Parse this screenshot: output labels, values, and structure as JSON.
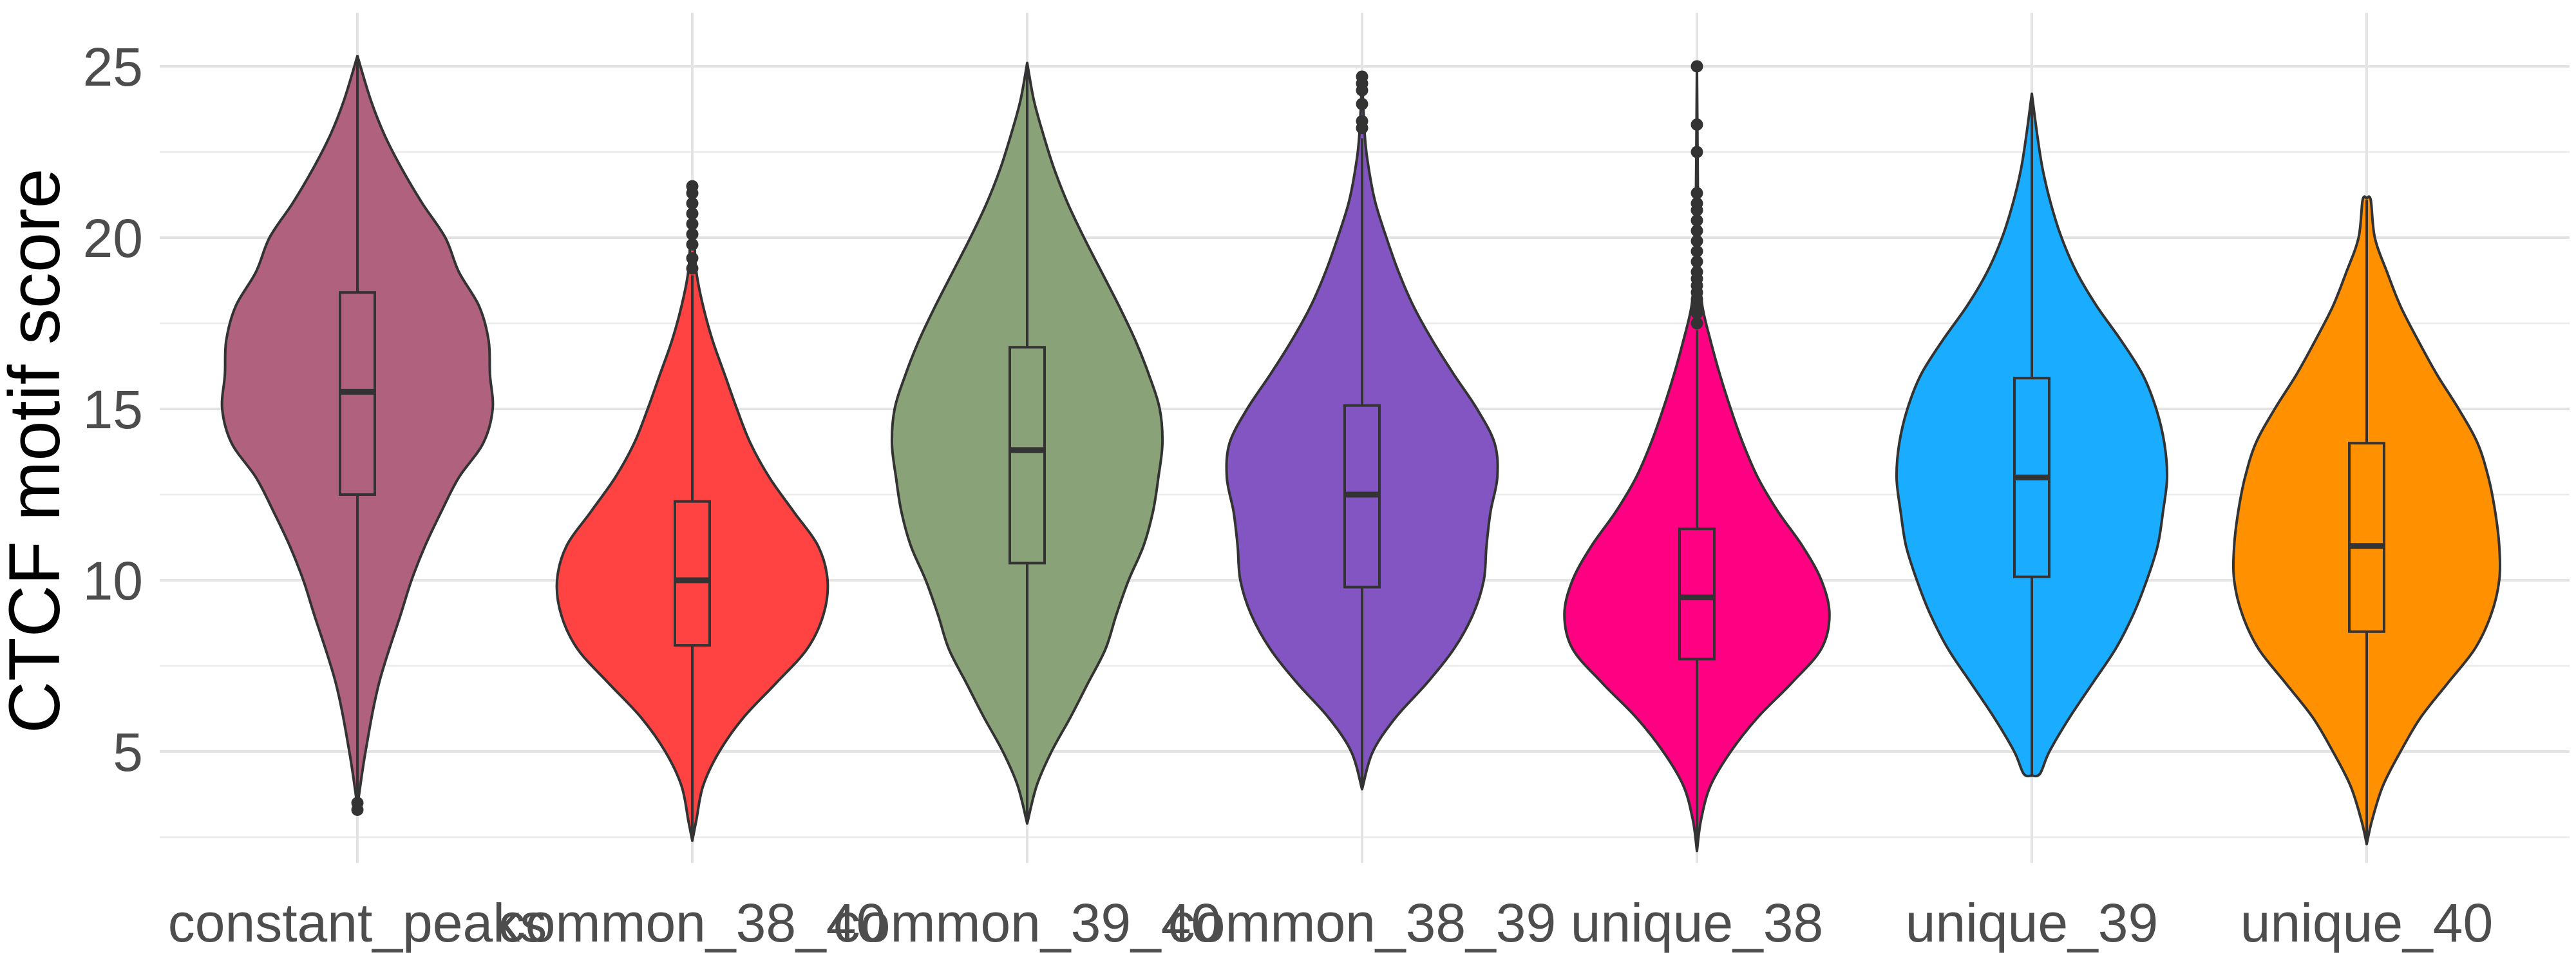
{
  "chart_data": {
    "type": "violin",
    "title": "",
    "xlabel": "",
    "ylabel": "CTCF motif score",
    "ylim": [
      2,
      26.5
    ],
    "yticks": [
      5,
      10,
      15,
      20,
      25
    ],
    "grid": true,
    "legend": "none",
    "categories": [
      "constant_peaks",
      "common_38_40",
      "common_39_40",
      "common_38_39",
      "unique_38",
      "unique_39",
      "unique_40"
    ],
    "series": [
      {
        "category": "constant_peaks",
        "color": "#b0617e",
        "box": {
          "whisker_low": 3.6,
          "q1": 12.5,
          "median": 15.5,
          "q3": 18.4,
          "whisker_high": 25.3
        },
        "outliers": [
          3.3,
          3.5
        ],
        "violin": [
          [
            3.4,
            0.0
          ],
          [
            5,
            0.06
          ],
          [
            7,
            0.16
          ],
          [
            9,
            0.32
          ],
          [
            10,
            0.4
          ],
          [
            11,
            0.5
          ],
          [
            12,
            0.62
          ],
          [
            13,
            0.75
          ],
          [
            14,
            0.93
          ],
          [
            15,
            1.0
          ],
          [
            16,
            0.98
          ],
          [
            17,
            0.97
          ],
          [
            18,
            0.9
          ],
          [
            19,
            0.75
          ],
          [
            20,
            0.65
          ],
          [
            21,
            0.48
          ],
          [
            22,
            0.33
          ],
          [
            23,
            0.2
          ],
          [
            24,
            0.1
          ],
          [
            25.3,
            0.0
          ]
        ]
      },
      {
        "category": "common_38_40",
        "color": "#ff4242",
        "box": {
          "whisker_low": 2.4,
          "q1": 8.1,
          "median": 10.0,
          "q3": 12.3,
          "whisker_high": 18.9
        },
        "outliers": [
          19.1,
          19.4,
          19.8,
          20.1,
          20.4,
          20.7,
          21.0,
          21.3,
          21.5
        ],
        "violin": [
          [
            2.4,
            0.0
          ],
          [
            3,
            0.03
          ],
          [
            4,
            0.08
          ],
          [
            5,
            0.2
          ],
          [
            6,
            0.38
          ],
          [
            7,
            0.62
          ],
          [
            8,
            0.85
          ],
          [
            9,
            0.97
          ],
          [
            10,
            1.0
          ],
          [
            11,
            0.93
          ],
          [
            12,
            0.75
          ],
          [
            13,
            0.57
          ],
          [
            14,
            0.43
          ],
          [
            15,
            0.33
          ],
          [
            16,
            0.24
          ],
          [
            17,
            0.15
          ],
          [
            18,
            0.08
          ],
          [
            19,
            0.03
          ],
          [
            20,
            0.015
          ],
          [
            21.5,
            0.0
          ]
        ]
      },
      {
        "category": "common_39_40",
        "color": "#8aa277",
        "box": {
          "whisker_low": 2.9,
          "q1": 10.5,
          "median": 13.8,
          "q3": 16.8,
          "whisker_high": 25.1
        },
        "outliers": [],
        "violin": [
          [
            2.9,
            0.0
          ],
          [
            4,
            0.07
          ],
          [
            5,
            0.18
          ],
          [
            6,
            0.32
          ],
          [
            7,
            0.45
          ],
          [
            8,
            0.58
          ],
          [
            9,
            0.66
          ],
          [
            10,
            0.75
          ],
          [
            11,
            0.86
          ],
          [
            12,
            0.93
          ],
          [
            13,
            0.97
          ],
          [
            14,
            1.0
          ],
          [
            15,
            0.98
          ],
          [
            16,
            0.9
          ],
          [
            17,
            0.8
          ],
          [
            18,
            0.68
          ],
          [
            19,
            0.55
          ],
          [
            20,
            0.42
          ],
          [
            21,
            0.3
          ],
          [
            22,
            0.2
          ],
          [
            23,
            0.12
          ],
          [
            24,
            0.05
          ],
          [
            25.1,
            0.0
          ]
        ]
      },
      {
        "category": "common_38_39",
        "color": "#8255c3",
        "box": {
          "whisker_low": 4.0,
          "q1": 9.8,
          "median": 12.5,
          "q3": 15.1,
          "whisker_high": 22.9
        },
        "outliers": [
          23.2,
          23.4,
          23.9,
          24.3,
          24.5,
          24.7
        ],
        "violin": [
          [
            3.9,
            0.0
          ],
          [
            5,
            0.08
          ],
          [
            6,
            0.25
          ],
          [
            7,
            0.48
          ],
          [
            8,
            0.68
          ],
          [
            9,
            0.82
          ],
          [
            10,
            0.9
          ],
          [
            11,
            0.92
          ],
          [
            12,
            0.95
          ],
          [
            13,
            1.0
          ],
          [
            14,
            0.98
          ],
          [
            15,
            0.85
          ],
          [
            16,
            0.68
          ],
          [
            17,
            0.52
          ],
          [
            18,
            0.38
          ],
          [
            19,
            0.27
          ],
          [
            20,
            0.18
          ],
          [
            21,
            0.1
          ],
          [
            22,
            0.05
          ],
          [
            23,
            0.02
          ],
          [
            24.7,
            0.0
          ]
        ]
      },
      {
        "category": "unique_38",
        "color": "#ff0082",
        "box": {
          "whisker_low": 2.1,
          "q1": 7.7,
          "median": 9.5,
          "q3": 11.5,
          "whisker_high": 17.3
        },
        "outliers": [
          17.5,
          17.8,
          18.0,
          18.2,
          18.4,
          18.6,
          18.8,
          19.0,
          19.3,
          19.6,
          19.9,
          20.2,
          20.5,
          20.8,
          21.0,
          21.3,
          22.5,
          23.3,
          25.0
        ],
        "violin": [
          [
            2.1,
            0.0
          ],
          [
            3,
            0.03
          ],
          [
            4,
            0.1
          ],
          [
            5,
            0.25
          ],
          [
            6,
            0.45
          ],
          [
            7,
            0.7
          ],
          [
            8,
            0.92
          ],
          [
            9,
            0.98
          ],
          [
            10,
            0.92
          ],
          [
            11,
            0.78
          ],
          [
            12,
            0.6
          ],
          [
            13,
            0.45
          ],
          [
            14,
            0.34
          ],
          [
            15,
            0.25
          ],
          [
            16,
            0.17
          ],
          [
            17,
            0.1
          ],
          [
            18,
            0.04
          ],
          [
            19,
            0.02
          ],
          [
            20,
            0.01
          ],
          [
            25,
            0.0
          ]
        ]
      },
      {
        "category": "unique_39",
        "color": "#1aadff",
        "box": {
          "whisker_low": 4.3,
          "q1": 10.1,
          "median": 13.0,
          "q3": 15.9,
          "whisker_high": 24.2
        },
        "outliers": [],
        "violin": [
          [
            4.3,
            0.0
          ],
          [
            4.35,
            0.06
          ],
          [
            5,
            0.13
          ],
          [
            6,
            0.28
          ],
          [
            7,
            0.45
          ],
          [
            8,
            0.62
          ],
          [
            9,
            0.75
          ],
          [
            10,
            0.85
          ],
          [
            11,
            0.93
          ],
          [
            12,
            0.97
          ],
          [
            13,
            1.0
          ],
          [
            14,
            0.98
          ],
          [
            15,
            0.92
          ],
          [
            16,
            0.82
          ],
          [
            17,
            0.66
          ],
          [
            18,
            0.48
          ],
          [
            19,
            0.33
          ],
          [
            20,
            0.22
          ],
          [
            21,
            0.14
          ],
          [
            22,
            0.08
          ],
          [
            23,
            0.04
          ],
          [
            24.2,
            0.0
          ]
        ]
      },
      {
        "category": "unique_40",
        "color": "#ff9000",
        "box": {
          "whisker_low": 2.3,
          "q1": 8.5,
          "median": 11.0,
          "q3": 14.0,
          "whisker_high": 21.1
        },
        "outliers": [],
        "violin": [
          [
            2.3,
            0.0
          ],
          [
            3,
            0.04
          ],
          [
            4,
            0.12
          ],
          [
            5,
            0.25
          ],
          [
            6,
            0.4
          ],
          [
            7,
            0.6
          ],
          [
            8,
            0.8
          ],
          [
            9,
            0.92
          ],
          [
            10,
            0.98
          ],
          [
            11,
            0.98
          ],
          [
            12,
            0.95
          ],
          [
            13,
            0.9
          ],
          [
            14,
            0.82
          ],
          [
            15,
            0.68
          ],
          [
            16,
            0.52
          ],
          [
            17,
            0.38
          ],
          [
            18,
            0.25
          ],
          [
            19,
            0.15
          ],
          [
            20,
            0.06
          ],
          [
            21.1,
            0.03
          ],
          [
            21.15,
            0.0
          ]
        ]
      }
    ]
  }
}
